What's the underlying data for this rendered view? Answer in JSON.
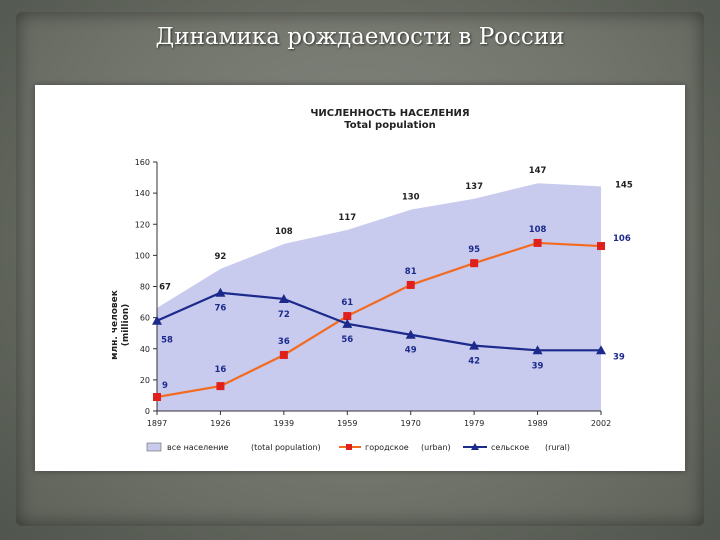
{
  "slide": {
    "title": "Динамика рождаемости в России"
  },
  "chart_data": {
    "type": "line",
    "title": "ЧИСЛЕННОСТЬ НАСЕЛЕНИЯ",
    "subtitle": "Total population",
    "ylabel": "млн. человек",
    "ylabel_en": "(million)",
    "ylim": [
      0,
      160
    ],
    "yticks": [
      0,
      20,
      40,
      60,
      80,
      100,
      120,
      140,
      160
    ],
    "categories": [
      "1897",
      "1926",
      "1939",
      "1959",
      "1970",
      "1979",
      "1989",
      "2002"
    ],
    "legend_placement": "bottom",
    "grid": false,
    "series": [
      {
        "name": "все население",
        "name_en": "(total population)",
        "style": "area",
        "color": "#c8caee",
        "edge_color": "#ffffff",
        "values": [
          67,
          92,
          108,
          117,
          130,
          137,
          147,
          145
        ],
        "labels": [
          "67",
          "92",
          "108",
          "117",
          "130",
          "137",
          "147",
          "145"
        ]
      },
      {
        "name": "городское",
        "name_en": "(urban)",
        "style": "line-square",
        "color": "#f26b21",
        "marker_color": "#e0201a",
        "values": [
          9,
          16,
          36,
          61,
          81,
          95,
          108,
          106
        ],
        "labels": [
          "9",
          "16",
          "36",
          "61",
          "81",
          "95",
          "108",
          "106"
        ]
      },
      {
        "name": "сельское",
        "name_en": "(rural)",
        "style": "line-triangle",
        "color": "#1c2a8c",
        "marker_color": "#1c2a8c",
        "values": [
          58,
          76,
          72,
          56,
          49,
          42,
          39,
          39
        ],
        "labels": [
          "58",
          "76",
          "72",
          "56",
          "49",
          "42",
          "39",
          "39"
        ]
      }
    ]
  }
}
